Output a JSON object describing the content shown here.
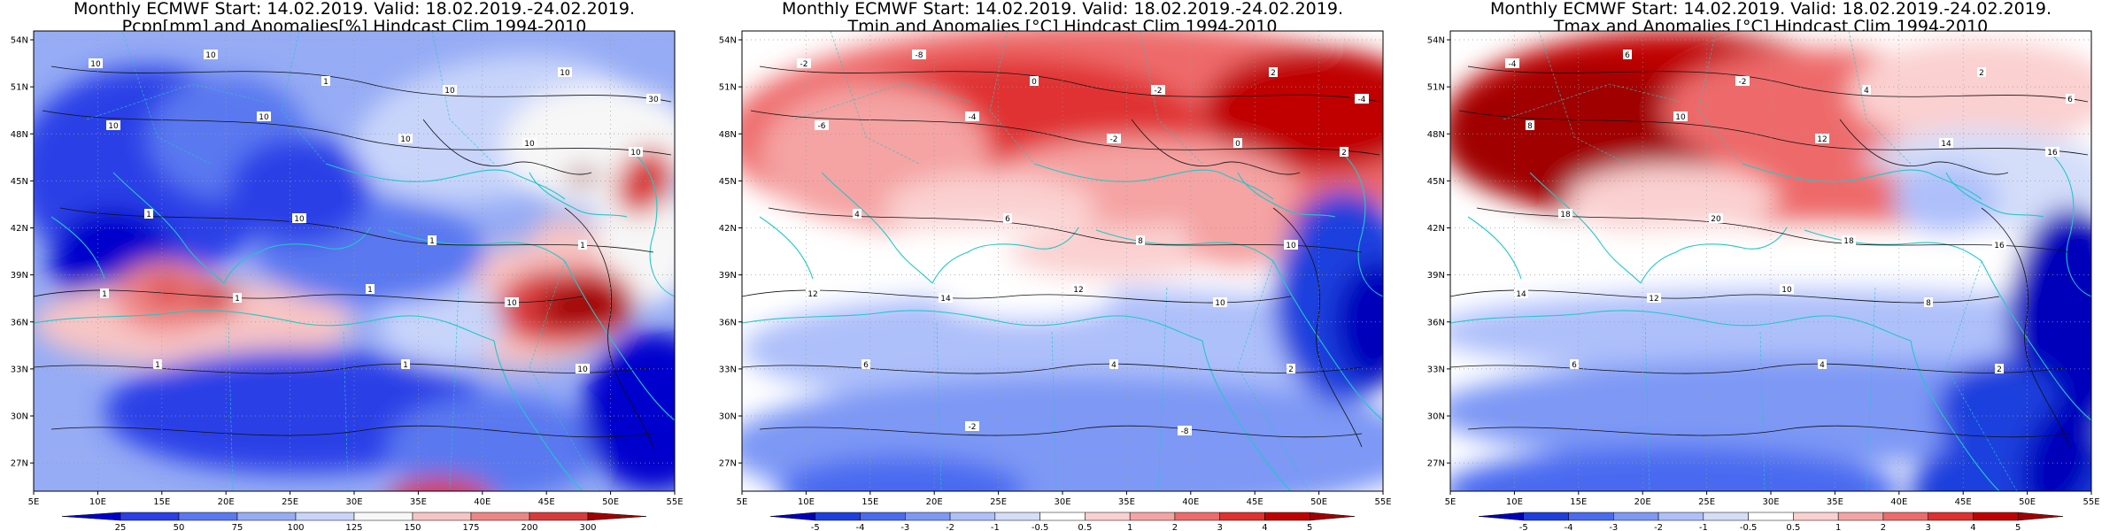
{
  "panels": [
    {
      "title_line1": "Monthly ECMWF Start: 14.02.2019. Valid: 18.02.2019.-24.02.2019.",
      "title_line2": "Pcpn[mm] and Anomalies[%] Hindcast Clim 1994-2010",
      "colorbar_labels": [
        "25",
        "50",
        "75",
        "100",
        "125",
        "150",
        "175",
        "200",
        "300"
      ],
      "colorbar_colors": [
        "#0000cc",
        "#2a3fe6",
        "#5a78f0",
        "#96acf5",
        "#c8d4fa",
        "#f7f7f7",
        "#f7c4c4",
        "#ee8585",
        "#d83a3a",
        "#a00000"
      ],
      "contour_labels": [
        "10",
        "10",
        "1",
        "10",
        "10",
        "30",
        "10",
        "10",
        "10",
        "10",
        "10",
        "1",
        "10",
        "1",
        "1",
        "1",
        "1",
        "1",
        "10",
        "1",
        "1",
        "10"
      ]
    },
    {
      "title_line1": "Monthly ECMWF Start: 14.02.2019. Valid: 18.02.2019.-24.02.2019.",
      "title_line2": "Tmin and Anomalies [°C] Hindcast Clim 1994-2010",
      "colorbar_labels": [
        "-5",
        "-4",
        "-3",
        "-2",
        "-1",
        "-0.5",
        "0.5",
        "1",
        "2",
        "3",
        "4",
        "5"
      ],
      "colorbar_colors": [
        "#0000bb",
        "#1f3fdd",
        "#4a6bf0",
        "#7d98f5",
        "#aec0fa",
        "#d4def9",
        "#ffffff",
        "#fbd0d0",
        "#f5a3a3",
        "#ee6b6b",
        "#e03030",
        "#c00000",
        "#a00000"
      ],
      "contour_labels": [
        "-2",
        "-8",
        "0",
        "-2",
        "2",
        "-4",
        "-6",
        "-4",
        "-2",
        "0",
        "2",
        "4",
        "6",
        "8",
        "10",
        "12",
        "14",
        "12",
        "10",
        "6",
        "4",
        "2",
        "-2",
        "-8"
      ]
    },
    {
      "title_line1": "Monthly ECMWF Start: 14.02.2019. Valid: 18.02.2019.-24.02.2019.",
      "title_line2": "Tmax and Anomalies [°C] Hindcast Clim 1994-2010",
      "colorbar_labels": [
        "-5",
        "-4",
        "-3",
        "-2",
        "-1",
        "-0.5",
        "0.5",
        "1",
        "2",
        "3",
        "4",
        "5"
      ],
      "colorbar_colors": [
        "#0000bb",
        "#1f3fdd",
        "#4a6bf0",
        "#7d98f5",
        "#aec0fa",
        "#d4def9",
        "#ffffff",
        "#fbd0d0",
        "#f5a3a3",
        "#ee6b6b",
        "#e03030",
        "#c00000",
        "#a00000"
      ],
      "contour_labels": [
        "-4",
        "6",
        "-2",
        "4",
        "2",
        "6",
        "8",
        "10",
        "12",
        "14",
        "16",
        "18",
        "20",
        "18",
        "16",
        "14",
        "12",
        "10",
        "8",
        "6",
        "4",
        "2"
      ]
    }
  ],
  "lat_labels": [
    "54N",
    "51N",
    "48N",
    "45N",
    "42N",
    "39N",
    "36N",
    "33N",
    "30N",
    "27N"
  ],
  "lon_labels": [
    "5E",
    "10E",
    "15E",
    "20E",
    "25E",
    "30E",
    "35E",
    "40E",
    "45E",
    "50E",
    "55E"
  ]
}
